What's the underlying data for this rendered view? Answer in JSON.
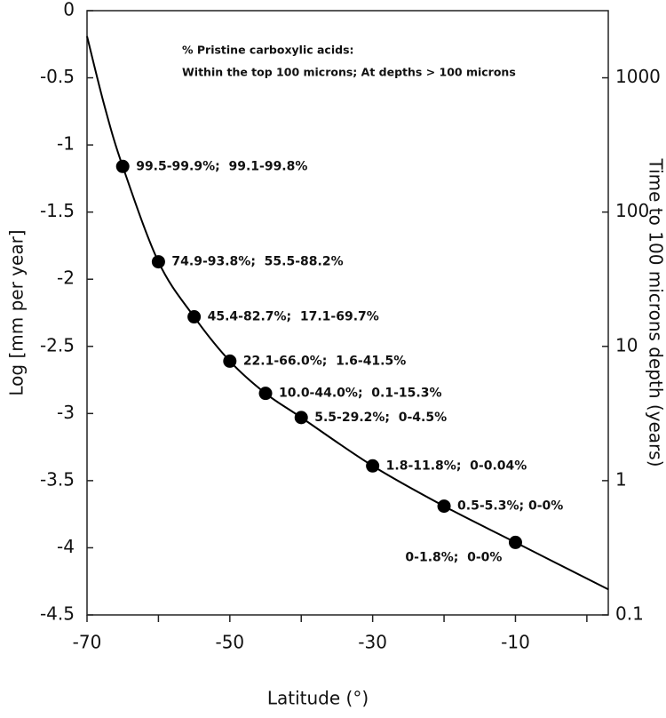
{
  "chart_data": {
    "type": "line",
    "annotation": [
      "% Pristine carboxylic acids:",
      "Within the top 100 microns; At depths > 100 microns"
    ],
    "xlabel": "Latitude (°)",
    "ylabel": "Log [mm per year]",
    "y2label": "Time to 100 microns depth (years)",
    "xlim": [
      -70,
      3
    ],
    "xticks": [
      -70,
      -50,
      -30,
      -10
    ],
    "xminorticks": [
      -60,
      -40,
      -20,
      0
    ],
    "ylim": [
      -4.5,
      0
    ],
    "yticks": [
      0,
      -0.5,
      -1,
      -1.5,
      -2,
      -2.5,
      -3,
      -3.5,
      -4,
      -4.5
    ],
    "y2lim": [
      0.1,
      3162.3
    ],
    "y2ticks": [
      0.1,
      1,
      10,
      100,
      1000
    ],
    "y2log": true,
    "curve": {
      "color": "#000000",
      "x": [
        -70,
        -67.5,
        -65,
        -60,
        -55,
        -50,
        -45,
        -40,
        -30,
        -20,
        -10,
        3
      ],
      "values": [
        -0.19,
        -0.72,
        -1.16,
        -1.87,
        -2.28,
        -2.61,
        -2.85,
        -3.03,
        -3.39,
        -3.69,
        -3.96,
        -4.31
      ]
    },
    "points": {
      "color": "#000000",
      "x": [
        -65,
        -60,
        -55,
        -50,
        -45,
        -40,
        -30,
        -20,
        -10
      ],
      "values": [
        -1.16,
        -1.87,
        -2.28,
        -2.61,
        -2.85,
        -3.03,
        -3.39,
        -3.69,
        -3.96
      ],
      "labels": [
        "99.5-99.9%;  99.1-99.8%",
        "74.9-93.8%;  55.5-88.2%",
        "45.4-82.7%;  17.1-69.7%",
        "22.1-66.0%;  1.6-41.5%",
        "10.0-44.0%;  0.1-15.3%",
        "5.5-29.2%;  0-4.5%",
        "1.8-11.8%;  0-0.04%",
        "0.5-5.3%; 0-0%",
        "0-1.8%;  0-0%"
      ]
    }
  }
}
